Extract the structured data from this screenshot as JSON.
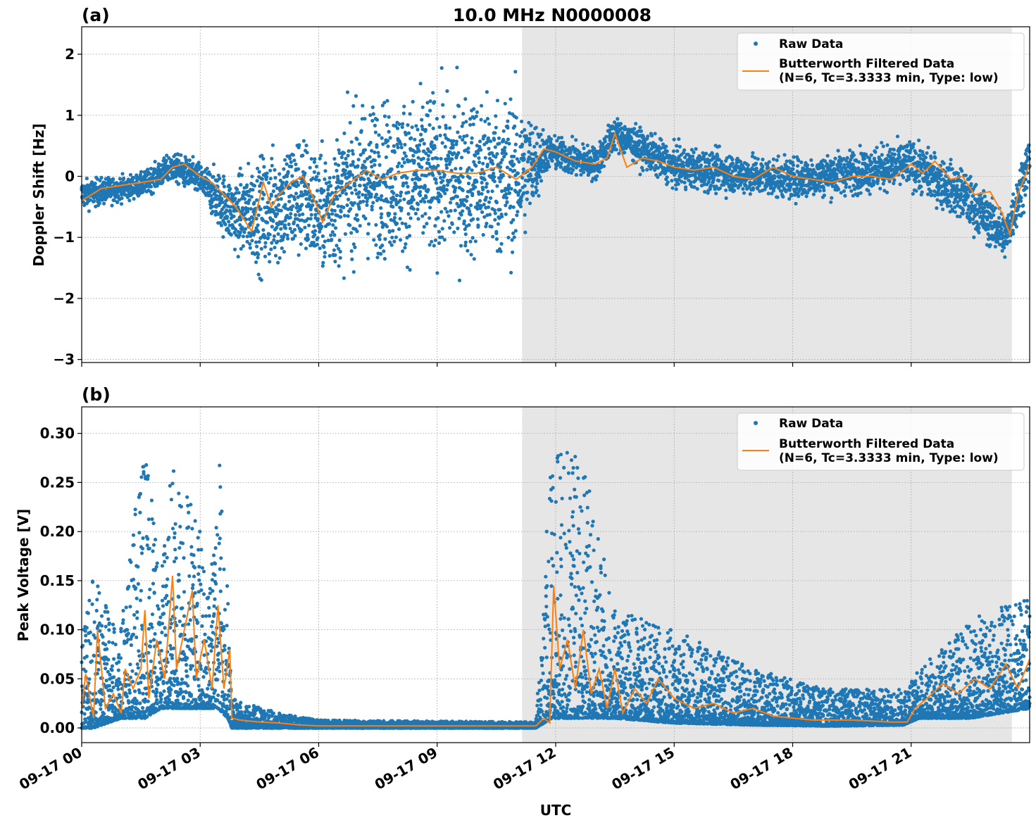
{
  "figure_title": "10.0 MHz N0000008",
  "colors": {
    "raw": "#1f77b4",
    "filtered": "#ff7f0e",
    "night_shade": "#e6e6e6",
    "grid": "#b0b0b0"
  },
  "legend": {
    "raw_label": "Raw Data",
    "filtered_label_line1": "Butterworth Filtered Data",
    "filtered_label_line2": "(N=6, Tc=3.3333 min, Type: low)"
  },
  "xaxis": {
    "label": "UTC",
    "range_hours": [
      0,
      24
    ],
    "tick_hours": [
      0,
      3,
      6,
      9,
      12,
      15,
      18,
      21
    ],
    "tick_labels": [
      "09-17 00",
      "09-17 03",
      "09-17 06",
      "09-17 09",
      "09-17 12",
      "09-17 15",
      "09-17 18",
      "09-17 21"
    ]
  },
  "chart_data": [
    {
      "type": "scatter",
      "panel_label": "(a)",
      "title": "10.0 MHz N0000008",
      "ylabel": "Doppler Shift [Hz]",
      "ylim": [
        -3.05,
        2.45
      ],
      "yticks": [
        2,
        1,
        0,
        -1,
        -2,
        -3
      ],
      "ytick_labels": [
        "2",
        "1",
        "0",
        "−1",
        "−2",
        "−3"
      ],
      "grid": true,
      "legend_position": "top-right",
      "shaded_interval_hours": [
        11.15,
        23.55
      ],
      "series": [
        {
          "name": "Raw Data",
          "style": "points",
          "envelope": [
            {
              "x": 0.0,
              "center": -0.3,
              "spread": 0.25
            },
            {
              "x": 1.5,
              "center": -0.15,
              "spread": 0.2
            },
            {
              "x": 2.3,
              "center": 0.15,
              "spread": 0.25
            },
            {
              "x": 3.0,
              "center": -0.05,
              "spread": 0.3
            },
            {
              "x": 3.8,
              "center": -0.6,
              "spread": 0.6
            },
            {
              "x": 4.6,
              "center": -0.6,
              "spread": 1.0
            },
            {
              "x": 5.5,
              "center": -0.3,
              "spread": 1.1
            },
            {
              "x": 6.1,
              "center": -0.6,
              "spread": 1.0
            },
            {
              "x": 7.0,
              "center": -0.05,
              "spread": 1.3
            },
            {
              "x": 9.0,
              "center": 0.0,
              "spread": 1.4
            },
            {
              "x": 11.0,
              "center": 0.0,
              "spread": 1.4
            },
            {
              "x": 11.8,
              "center": 0.4,
              "spread": 0.3
            },
            {
              "x": 13.0,
              "center": 0.2,
              "spread": 0.3
            },
            {
              "x": 13.5,
              "center": 0.7,
              "spread": 0.3
            },
            {
              "x": 15.0,
              "center": 0.15,
              "spread": 0.35
            },
            {
              "x": 18.0,
              "center": -0.05,
              "spread": 0.35
            },
            {
              "x": 21.0,
              "center": 0.2,
              "spread": 0.4
            },
            {
              "x": 22.3,
              "center": -0.3,
              "spread": 0.45
            },
            {
              "x": 23.4,
              "center": -1.0,
              "spread": 0.4
            },
            {
              "x": 24.0,
              "center": 0.3,
              "spread": 0.5
            }
          ]
        },
        {
          "name": "Butterworth Filtered Data (N=6, Tc=3.3333 min, Type: low)",
          "style": "line",
          "x": [
            0.0,
            0.5,
            1.0,
            1.5,
            2.0,
            2.3,
            2.6,
            3.0,
            3.3,
            3.6,
            3.9,
            4.3,
            4.6,
            4.8,
            5.0,
            5.3,
            5.6,
            5.9,
            6.1,
            6.4,
            6.8,
            7.2,
            7.6,
            8.0,
            8.5,
            9.0,
            9.5,
            10.0,
            10.5,
            11.0,
            11.4,
            11.7,
            12.0,
            12.5,
            13.0,
            13.3,
            13.5,
            13.8,
            14.2,
            14.6,
            15.0,
            15.5,
            16.0,
            16.5,
            17.0,
            17.5,
            18.0,
            18.5,
            19.0,
            19.5,
            20.0,
            20.5,
            21.0,
            21.3,
            21.6,
            22.0,
            22.3,
            22.6,
            23.0,
            23.3,
            23.5,
            23.7,
            24.0
          ],
          "y": [
            -0.4,
            -0.2,
            -0.15,
            -0.1,
            -0.05,
            0.15,
            0.2,
            0.0,
            -0.1,
            -0.3,
            -0.5,
            -0.9,
            -0.1,
            -0.5,
            -0.3,
            -0.1,
            0.0,
            -0.4,
            -0.75,
            -0.3,
            -0.1,
            0.1,
            -0.05,
            0.05,
            0.1,
            0.1,
            0.05,
            0.05,
            0.15,
            -0.05,
            0.15,
            0.45,
            0.4,
            0.25,
            0.2,
            0.3,
            0.7,
            0.15,
            0.3,
            0.25,
            0.15,
            0.1,
            0.15,
            0.0,
            -0.05,
            0.15,
            0.0,
            -0.05,
            -0.1,
            0.0,
            0.0,
            -0.05,
            0.2,
            0.05,
            0.25,
            -0.05,
            0.0,
            -0.3,
            -0.25,
            -0.6,
            -0.95,
            -0.3,
            0.2
          ]
        }
      ]
    },
    {
      "type": "scatter",
      "panel_label": "(b)",
      "ylabel": "Peak Voltage [V]",
      "xlabel": "UTC",
      "ylim": [
        -0.015,
        0.327
      ],
      "yticks": [
        0.3,
        0.25,
        0.2,
        0.15,
        0.1,
        0.05,
        0.0
      ],
      "ytick_labels": [
        "0.30",
        "0.25",
        "0.20",
        "0.15",
        "0.10",
        "0.05",
        "0.00"
      ],
      "grid": true,
      "legend_position": "top-right",
      "shaded_interval_hours": [
        11.15,
        23.55
      ],
      "series": [
        {
          "name": "Raw Data",
          "style": "points",
          "envelope": [
            {
              "x": 0.0,
              "low": 0.0,
              "high": 0.09
            },
            {
              "x": 0.3,
              "low": 0.0,
              "high": 0.155
            },
            {
              "x": 1.0,
              "low": 0.01,
              "high": 0.11
            },
            {
              "x": 1.6,
              "low": 0.01,
              "high": 0.3
            },
            {
              "x": 2.0,
              "low": 0.02,
              "high": 0.16
            },
            {
              "x": 2.3,
              "low": 0.02,
              "high": 0.28
            },
            {
              "x": 2.8,
              "low": 0.02,
              "high": 0.25
            },
            {
              "x": 3.2,
              "low": 0.02,
              "high": 0.15
            },
            {
              "x": 3.45,
              "low": 0.02,
              "high": 0.31
            },
            {
              "x": 3.7,
              "low": 0.01,
              "high": 0.14
            },
            {
              "x": 3.8,
              "low": 0.0,
              "high": 0.03
            },
            {
              "x": 5.0,
              "low": 0.0,
              "high": 0.015
            },
            {
              "x": 6.0,
              "low": 0.0,
              "high": 0.008
            },
            {
              "x": 11.5,
              "low": 0.0,
              "high": 0.006
            },
            {
              "x": 11.9,
              "low": 0.01,
              "high": 0.29
            },
            {
              "x": 12.7,
              "low": 0.01,
              "high": 0.285
            },
            {
              "x": 13.5,
              "low": 0.01,
              "high": 0.12
            },
            {
              "x": 15.0,
              "low": 0.005,
              "high": 0.1
            },
            {
              "x": 17.0,
              "low": 0.003,
              "high": 0.06
            },
            {
              "x": 19.0,
              "low": 0.002,
              "high": 0.04
            },
            {
              "x": 20.8,
              "low": 0.003,
              "high": 0.04
            },
            {
              "x": 21.2,
              "low": 0.01,
              "high": 0.06
            },
            {
              "x": 22.5,
              "low": 0.01,
              "high": 0.11
            },
            {
              "x": 24.0,
              "low": 0.02,
              "high": 0.135
            }
          ]
        },
        {
          "name": "Butterworth Filtered Data (N=6, Tc=3.3333 min, Type: low)",
          "style": "line",
          "x": [
            0.0,
            0.1,
            0.3,
            0.4,
            0.6,
            0.8,
            1.0,
            1.1,
            1.3,
            1.5,
            1.6,
            1.7,
            1.9,
            2.1,
            2.3,
            2.4,
            2.6,
            2.8,
            2.9,
            3.1,
            3.3,
            3.45,
            3.6,
            3.75,
            3.8,
            4.0,
            4.5,
            5.0,
            5.5,
            6.0,
            7.0,
            8.0,
            9.0,
            10.0,
            11.0,
            11.5,
            11.7,
            11.85,
            11.95,
            12.1,
            12.3,
            12.5,
            12.7,
            12.9,
            13.1,
            13.3,
            13.5,
            13.7,
            14.0,
            14.3,
            14.6,
            15.0,
            15.5,
            16.0,
            16.5,
            17.0,
            17.5,
            18.0,
            18.5,
            19.0,
            19.5,
            20.0,
            20.5,
            20.9,
            21.1,
            21.4,
            21.8,
            22.2,
            22.6,
            23.0,
            23.4,
            23.7,
            24.0
          ],
          "y": [
            0.02,
            0.055,
            0.01,
            0.1,
            0.02,
            0.035,
            0.015,
            0.06,
            0.04,
            0.06,
            0.12,
            0.03,
            0.09,
            0.05,
            0.155,
            0.06,
            0.1,
            0.14,
            0.05,
            0.09,
            0.04,
            0.125,
            0.04,
            0.08,
            0.01,
            0.008,
            0.006,
            0.005,
            0.003,
            0.002,
            0.002,
            0.002,
            0.002,
            0.002,
            0.002,
            0.002,
            0.01,
            0.005,
            0.145,
            0.06,
            0.09,
            0.04,
            0.1,
            0.035,
            0.06,
            0.02,
            0.06,
            0.015,
            0.04,
            0.025,
            0.05,
            0.03,
            0.02,
            0.025,
            0.015,
            0.02,
            0.012,
            0.01,
            0.008,
            0.008,
            0.008,
            0.007,
            0.006,
            0.006,
            0.02,
            0.03,
            0.045,
            0.035,
            0.05,
            0.04,
            0.065,
            0.04,
            0.07
          ]
        }
      ]
    }
  ]
}
